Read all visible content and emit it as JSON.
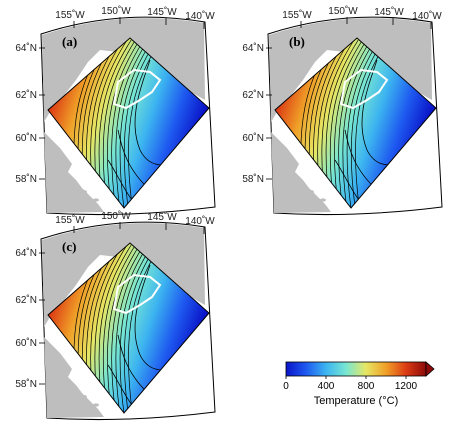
{
  "chart_data": {
    "type": "heatmap",
    "panels": [
      {
        "label": "(a)"
      },
      {
        "label": "(b)"
      },
      {
        "label": "(c)"
      }
    ],
    "lon_ticks": [
      "155˚W",
      "150˚W",
      "145˚W",
      "140˚W"
    ],
    "lat_ticks": [
      "64˚N",
      "62˚N",
      "60˚N",
      "58˚N"
    ],
    "colorbar": {
      "title": "Temperature (°C)",
      "tick_labels": [
        "0",
        "400",
        "800",
        "1200"
      ],
      "range": [
        0,
        1400
      ],
      "colors": [
        "#0a14c8",
        "#1e5af0",
        "#3cb4f0",
        "#78e6d2",
        "#e6e664",
        "#f0a028",
        "#dc3c14",
        "#8c0a0a"
      ]
    },
    "colors": {
      "land": "#bebebe",
      "frame_fill": "#ffffff",
      "contour": "#000000",
      "region_outline": "#ffffff"
    }
  }
}
